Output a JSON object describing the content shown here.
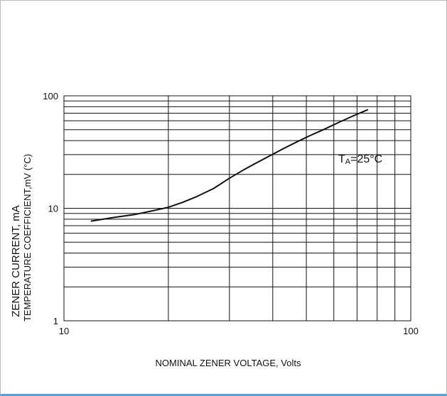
{
  "chart_data": {
    "type": "line",
    "x_scale": "log",
    "y_scale": "log",
    "xlim": [
      10,
      100
    ],
    "ylim": [
      1,
      100
    ],
    "x_tick_labels": [
      "10",
      "100"
    ],
    "y_tick_labels": [
      "1",
      "10",
      "100"
    ],
    "xlabel": "NOMINAL ZENER VOLTAGE, Volts",
    "ylabel_primary": "ZENER CURRENT, mA",
    "ylabel_secondary": "TEMPERATURE COEFFICIENT,mV (°C)",
    "annotation": {
      "text_main": "T",
      "text_sub": "A",
      "text_rest": "=25°C"
    },
    "grid": true,
    "series": [
      {
        "x": [
          12,
          14,
          16,
          18,
          20,
          22,
          24,
          27,
          30,
          33,
          36,
          39,
          43,
          47,
          51,
          56,
          62,
          68,
          75
        ],
        "y": [
          7.7,
          8.3,
          8.8,
          9.5,
          10.2,
          11.3,
          12.6,
          15,
          18.5,
          22,
          25.5,
          29,
          34,
          39,
          44,
          50,
          58,
          66,
          75
        ]
      }
    ]
  }
}
